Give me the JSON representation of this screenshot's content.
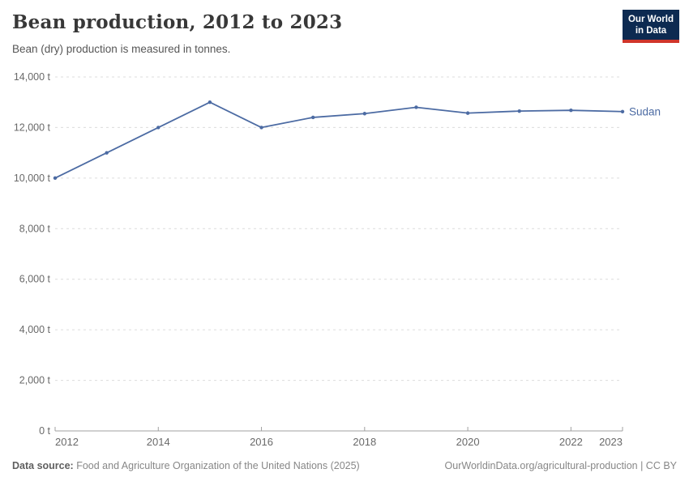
{
  "header": {
    "title": "Bean production, 2012 to 2023",
    "subtitle": "Bean (dry) production is measured in tonnes."
  },
  "logo": {
    "line1": "Our World",
    "line2": "in Data",
    "bg_color": "#0d2a51",
    "accent_color": "#d0352a"
  },
  "chart_data": {
    "type": "line",
    "x": [
      2012,
      2013,
      2014,
      2015,
      2016,
      2017,
      2018,
      2019,
      2020,
      2021,
      2022,
      2023
    ],
    "series": [
      {
        "name": "Sudan",
        "color": "#4c6ba3",
        "values": [
          10000,
          11000,
          12000,
          13000,
          12000,
          12400,
          12550,
          12800,
          12570,
          12650,
          12680,
          12630
        ]
      }
    ],
    "title": "Bean production, 2012 to 2023",
    "xlabel": "",
    "ylabel": "",
    "ylim": [
      0,
      14000
    ],
    "yticks": [
      0,
      2000,
      4000,
      6000,
      8000,
      10000,
      12000,
      14000
    ],
    "ytick_suffix": " t",
    "xticks": [
      2012,
      2014,
      2016,
      2018,
      2020,
      2022,
      2023
    ],
    "grid": "horizontal-dashed",
    "gridline_color": "#dcdcdc",
    "axis_color": "#a0a0a0",
    "tick_label_color": "#696969",
    "legend_position": "end-of-line-label"
  },
  "footer": {
    "source_label": "Data source:",
    "source_text": " Food and Agriculture Organization of the United Nations (2025)",
    "credit": "OurWorldinData.org/agricultural-production | CC BY"
  }
}
